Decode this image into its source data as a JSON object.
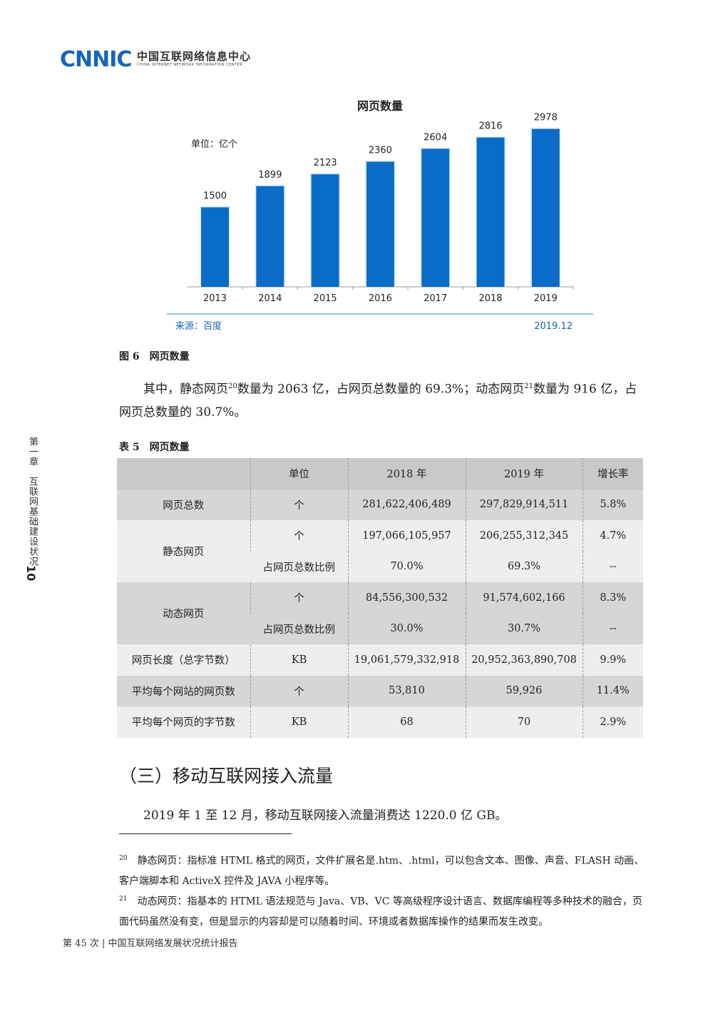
{
  "header": {
    "logo_mark": "CNNIC",
    "logo_cn": "中国互联网络信息中心",
    "logo_en": "CHINA INTERNET NETWORK INFORMATION CENTER"
  },
  "chart_data": {
    "type": "bar",
    "title": "网页数量",
    "unit_label": "单位：亿个",
    "categories": [
      "2013",
      "2014",
      "2015",
      "2016",
      "2017",
      "2018",
      "2019"
    ],
    "values": [
      1500,
      1899,
      2123,
      2360,
      2604,
      2816,
      2978
    ],
    "source": "来源：百度",
    "date": "2019.12",
    "bar_color": "#0a6cc9",
    "grid": false,
    "legend": "none"
  },
  "figure_caption": "图 6　网页数量",
  "paragraph1": {
    "a": "其中，静态网页",
    "sup1": "20",
    "b": "数量为 2063 亿，占网页总数量的 69.3%；动态网页",
    "sup2": "21",
    "c": "数量为 916 亿，占网页总数量的 30.7%。"
  },
  "table_caption": "表 5　网页数量",
  "table": {
    "headers": [
      "",
      "单位",
      "2018 年",
      "2019 年",
      "增长率"
    ],
    "r1": [
      "网页总数",
      "个",
      "281,622,406,489",
      "297,829,914,511",
      "5.8%"
    ],
    "static_label": "静态网页",
    "r2": [
      "个",
      "197,066,105,957",
      "206,255,312,345",
      "4.7%"
    ],
    "r3": [
      "占网页总数比例",
      "70.0%",
      "69.3%",
      "--"
    ],
    "dynamic_label": "动态网页",
    "r4": [
      "个",
      "84,556,300,532",
      "91,574,602,166",
      "8.3%"
    ],
    "r5": [
      "占网页总数比例",
      "30.0%",
      "30.7%",
      "--"
    ],
    "r6": [
      "网页长度（总字节数）",
      "KB",
      "19,061,579,332,918",
      "20,952,363,890,708",
      "9.9%"
    ],
    "r7": [
      "平均每个网站的网页数",
      "个",
      "53,810",
      "59,926",
      "11.4%"
    ],
    "r8": [
      "平均每个网页的字节数",
      "KB",
      "68",
      "70",
      "2.9%"
    ]
  },
  "section_heading": "（三）移动互联网接入流量",
  "paragraph2": "2019 年 1 至 12 月，移动互联网接入流量消费达 1220.0 亿 GB。",
  "footnotes": {
    "fn20_num": "20",
    "fn20_text": "静态网页：指标准 HTML 格式的网页，文件扩展名是.htm、.html，可以包含文本、图像、声音、FLASH 动画、客户端脚本和 ActiveX 控件及 JAVA 小程序等。",
    "fn21_num": "21",
    "fn21_text": "动态网页：指基本的 HTML 语法规范与 Java、VB、VC 等高级程序设计语言、数据库编程等多种技术的融合，页面代码虽然没有变，但是显示的内容却是可以随着时间、环境或者数据库操作的结果而发生改变。"
  },
  "footer": "第 45 次 | 中国互联网络发展状况统计报告",
  "sidebar": {
    "chapter": "第一章　互联网基础建设状况",
    "page_number": "10"
  }
}
